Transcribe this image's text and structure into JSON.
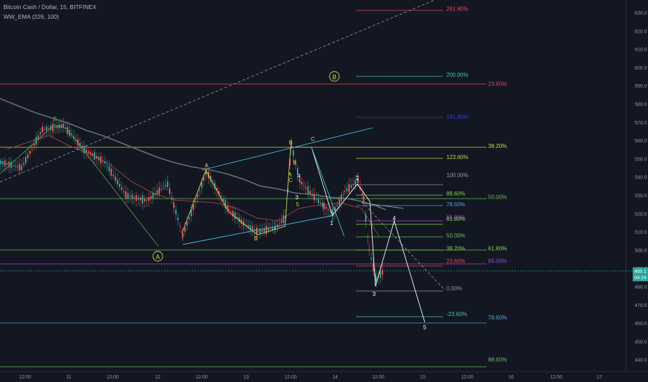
{
  "header": {
    "symbol_line": "Bitcoin Cash / Dollar, 15, BITFINEX",
    "indicator_line": "WW_EMA (226, 100)"
  },
  "chart_data": {
    "type": "candlestick",
    "symbol": "Bitcoin Cash / Dollar",
    "interval": "15",
    "exchange": "BITFINEX",
    "indicator": "WW_EMA (226, 100)",
    "y_axis_ticks": [
      440,
      450,
      460,
      470,
      480,
      490,
      500,
      510,
      520,
      530,
      540,
      550,
      560,
      570,
      580,
      590,
      600,
      610,
      620,
      630
    ],
    "ylim": [
      436,
      636
    ],
    "x_axis_ticks": [
      "12:00",
      "11",
      "12:00",
      "12",
      "12:00",
      "13",
      "12:00",
      "14",
      "12:00",
      "15",
      "12:00",
      "16",
      "12:00",
      "17"
    ],
    "last_price": "489.1",
    "countdown": "04:24",
    "colors": {
      "background": "#131722",
      "up": "#26a69a",
      "down": "#ef5350",
      "price_line": "#26a69a"
    },
    "fib_labels": [
      {
        "text": "261.80%",
        "price": 632,
        "color": "#e04a5a"
      },
      {
        "text": "200.00%",
        "price": 596,
        "color": "#3ec9a7"
      },
      {
        "text": "23.60%",
        "price": 591,
        "color": "#e04a5a"
      },
      {
        "text": "161.80%",
        "price": 573,
        "color": "#3a3acc"
      },
      {
        "text": "38.20%",
        "price": 557,
        "color": "#d4d44a"
      },
      {
        "text": "123.60%",
        "price": 551,
        "color": "#b6d84c"
      },
      {
        "text": "100.00%",
        "price": 541,
        "color": "#9598a1"
      },
      {
        "text": "88.60%",
        "price": 531,
        "color": "#7fd84c"
      },
      {
        "text": "50.00%",
        "price": 529,
        "color": "#68c15a"
      },
      {
        "text": "78.60%",
        "price": 525,
        "color": "#4aa3d8"
      },
      {
        "text": "65.00%",
        "price": 518,
        "color": "#b044d8"
      },
      {
        "text": "61.80%",
        "price": 517,
        "color": "#7fd84c"
      },
      {
        "text": "50.00%",
        "price": 508,
        "color": "#68c15a"
      },
      {
        "text": "38.20%",
        "price": 501,
        "color": "#7fd84c"
      },
      {
        "text": "61.80%",
        "price": 501,
        "color": "#7fd84c"
      },
      {
        "text": "23.60%",
        "price": 494,
        "color": "#e04a5a"
      },
      {
        "text": "65.00%",
        "price": 494,
        "color": "#b044d8"
      },
      {
        "text": "0.00%",
        "price": 479,
        "color": "#9598a1"
      },
      {
        "text": "-23.60%",
        "price": 465,
        "color": "#3ec9a7"
      },
      {
        "text": "78.60%",
        "price": 463,
        "color": "#4aa3d8"
      },
      {
        "text": "88.60%",
        "price": 440,
        "color": "#68c15a"
      }
    ],
    "wave_labels": [
      "A",
      "B",
      "B",
      "A",
      "B",
      "B",
      "C",
      "A",
      "B",
      "C",
      "4",
      "3",
      "5",
      "1",
      "2",
      "3",
      "4",
      "5"
    ]
  }
}
